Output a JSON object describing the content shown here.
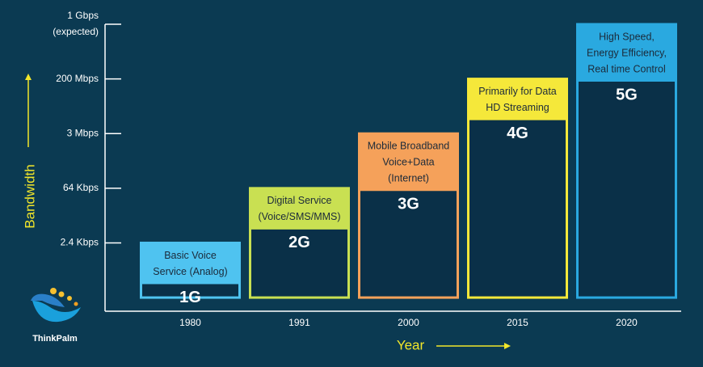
{
  "chart_data": {
    "type": "bar",
    "categories": [
      "1980",
      "1991",
      "2000",
      "2015",
      "2020"
    ],
    "values": [
      1,
      2,
      3,
      4,
      5
    ],
    "labels": [
      "1G",
      "2G",
      "3G",
      "4G",
      "5G"
    ],
    "descriptions": [
      [
        "Basic Voice",
        "Service (Analog)"
      ],
      [
        "Digital Service",
        "(Voice/SMS/MMS)"
      ],
      [
        "Mobile Broadband",
        "Voice+Data",
        "(Internet)"
      ],
      [
        "Primarily for Data",
        "HD Streaming"
      ],
      [
        "High Speed,",
        "Energy Efficiency,",
        "Real time Control"
      ]
    ],
    "colors": [
      "#4fc3f0",
      "#c9e052",
      "#f5a15a",
      "#f5e83a",
      "#2aa9e0"
    ],
    "ylim": [
      -0.25,
      5
    ],
    "yticks": [
      {
        "value": 1,
        "label": "2.4 Kbps"
      },
      {
        "value": 2,
        "label": "64 Kbps"
      },
      {
        "value": 3,
        "label": "3 Mbps"
      },
      {
        "value": 4,
        "label": "200 Mbps"
      },
      {
        "value": 5,
        "label": "1 Gbps\n(expected)"
      }
    ],
    "x_label": "Year",
    "y_label": "Bandwidth"
  },
  "logo_text": "ThinkPalm"
}
